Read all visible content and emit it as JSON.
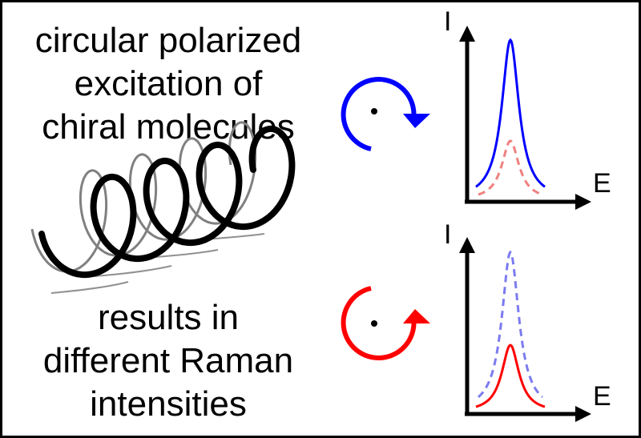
{
  "captions": {
    "top": [
      "circular polarized",
      "excitation of",
      "chiral molecules"
    ],
    "bottom": [
      "results in",
      "different Raman",
      "intensities"
    ]
  },
  "plots": {
    "top": {
      "y_label": "I",
      "x_label": "E",
      "rotation_color": "#0000ff",
      "rotation_sense": "clockwise",
      "solid_peak": {
        "color": "#0000ff",
        "relative_height": 1.0
      },
      "dashed_peak": {
        "color": "#f08080",
        "relative_height": 0.37
      }
    },
    "bottom": {
      "y_label": "I",
      "x_label": "E",
      "rotation_color": "#ff0000",
      "rotation_sense": "counterclockwise",
      "solid_peak": {
        "color": "#ff0000",
        "relative_height": 0.42
      },
      "dashed_peak": {
        "color": "#7b7bf0",
        "relative_height": 1.0
      }
    }
  },
  "helix": {
    "front_color": "#000000",
    "shadow_color": "#808080",
    "turns": 4
  }
}
